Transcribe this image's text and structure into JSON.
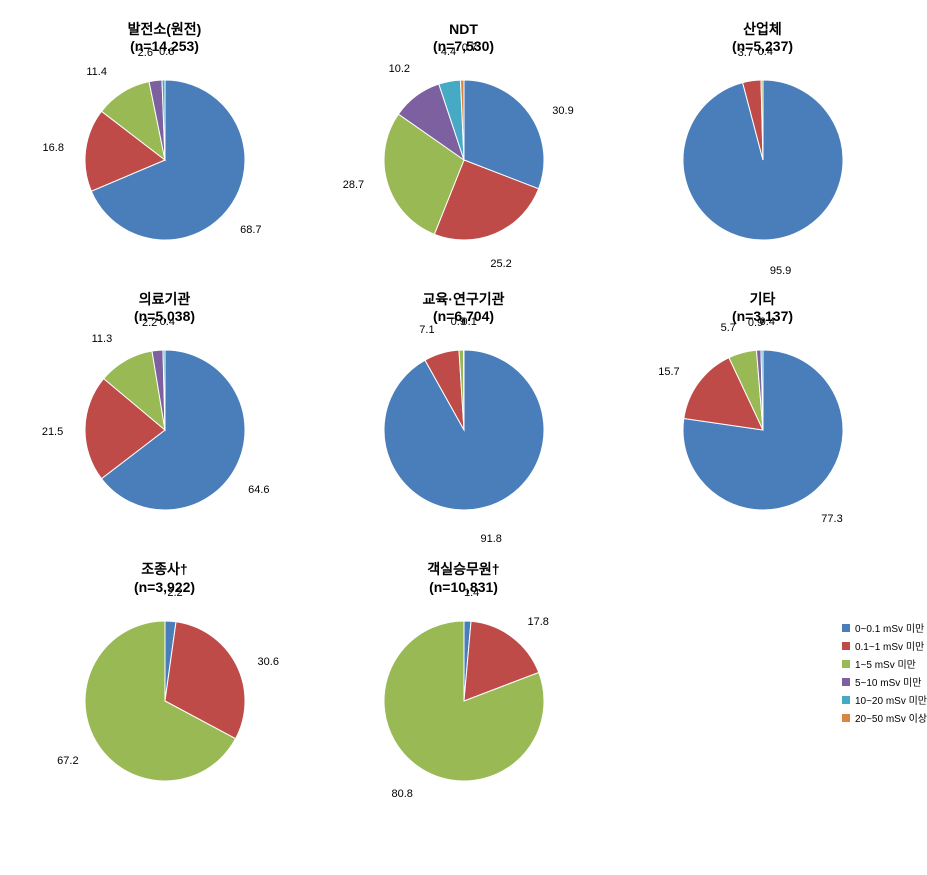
{
  "colors": {
    "c0": "#4a7ebb",
    "c1": "#be4b48",
    "c2": "#98b954",
    "c3": "#7d60a0",
    "c4": "#46aac5",
    "c5": "#db843d"
  },
  "legend": [
    {
      "label": "0~0.1 mSv 미만",
      "color": "#4a7ebb"
    },
    {
      "label": "0.1~1 mSv 미만",
      "color": "#be4b48"
    },
    {
      "label": "1~5 mSv 미만",
      "color": "#98b954"
    },
    {
      "label": "5~10 mSv 미만",
      "color": "#7d60a0"
    },
    {
      "label": "10~20 mSv 미만",
      "color": "#46aac5"
    },
    {
      "label": "20~50 mSv 이상",
      "color": "#db843d"
    }
  ],
  "pie_radius": 80,
  "label_fontsize": 11,
  "title_fontsize": 14,
  "charts": [
    {
      "title": "발전소(원전)",
      "n": "(n=14,253)",
      "slices": [
        {
          "value": 68.7,
          "label": "68.7",
          "color": "#4a7ebb",
          "offx": 8,
          "offy": 18
        },
        {
          "value": 16.8,
          "label": "16.8",
          "color": "#be4b48",
          "offx": -18,
          "offy": 0
        },
        {
          "value": 11.4,
          "label": "11.4",
          "color": "#98b954",
          "offx": -18,
          "offy": -8
        },
        {
          "value": 2.6,
          "label": "2.6",
          "color": "#7d60a0",
          "offx": -8,
          "offy": -14
        },
        {
          "value": 0.6,
          "label": "0.6",
          "color": "#46aac5",
          "offx": 4,
          "offy": -14
        }
      ]
    },
    {
      "title": "NDT",
      "n": "(n=7,530)",
      "slices": [
        {
          "value": 30.9,
          "label": "30.9",
          "color": "#4a7ebb",
          "offx": 22,
          "offy": 4
        },
        {
          "value": 25.2,
          "label": "25.2",
          "color": "#be4b48",
          "offx": 0,
          "offy": 18
        },
        {
          "value": 28.7,
          "label": "28.7",
          "color": "#98b954",
          "offx": -20,
          "offy": -2
        },
        {
          "value": 10.2,
          "label": "10.2",
          "color": "#7d60a0",
          "offx": -8,
          "offy": -16
        },
        {
          "value": 4.4,
          "label": "4.4",
          "color": "#46aac5",
          "offx": 2,
          "offy": -16
        },
        {
          "value": 0.7,
          "label": "0.7",
          "color": "#db843d",
          "offx": 8,
          "offy": -18
        }
      ]
    },
    {
      "title": "산업체",
      "n": "(n=5,237)",
      "slices": [
        {
          "value": 95.9,
          "label": "95.9",
          "color": "#4a7ebb",
          "offx": 6,
          "offy": 18
        },
        {
          "value": 3.7,
          "label": "3.7",
          "color": "#be4b48",
          "offx": -4,
          "offy": -14
        },
        {
          "value": 0.4,
          "label": "0.4",
          "color": "#98b954",
          "offx": 4,
          "offy": -14
        }
      ]
    },
    {
      "title": "의료기관",
      "n": "(n=5,038)",
      "slices": [
        {
          "value": 64.6,
          "label": "64.6",
          "color": "#4a7ebb",
          "offx": 10,
          "offy": 18
        },
        {
          "value": 21.5,
          "label": "21.5",
          "color": "#be4b48",
          "offx": -18,
          "offy": 4
        },
        {
          "value": 11.3,
          "label": "11.3",
          "color": "#98b954",
          "offx": -16,
          "offy": -10
        },
        {
          "value": 2.2,
          "label": "2.2",
          "color": "#7d60a0",
          "offx": -6,
          "offy": -14
        },
        {
          "value": 0.4,
          "label": "0.4",
          "color": "#46aac5",
          "offx": 4,
          "offy": -14
        }
      ]
    },
    {
      "title": "교육·연구기관",
      "n": "(n=6,704)",
      "slices": [
        {
          "value": 91.8,
          "label": "91.8",
          "color": "#4a7ebb",
          "offx": 4,
          "offy": 18
        },
        {
          "value": 7.1,
          "label": "7.1",
          "color": "#be4b48",
          "offx": -10,
          "offy": -10
        },
        {
          "value": 0.9,
          "label": "0.9",
          "color": "#98b954",
          "offx": -2,
          "offy": -14
        },
        {
          "value": 0.1,
          "label": "0.1",
          "color": "#7d60a0",
          "offx": 6,
          "offy": -14
        }
      ]
    },
    {
      "title": "기타",
      "n": "(n=3,137)",
      "slices": [
        {
          "value": 77.3,
          "label": "77.3",
          "color": "#4a7ebb",
          "offx": 8,
          "offy": 18
        },
        {
          "value": 15.7,
          "label": "15.7",
          "color": "#be4b48",
          "offx": -18,
          "offy": -2
        },
        {
          "value": 5.7,
          "label": "5.7",
          "color": "#98b954",
          "offx": -10,
          "offy": -12
        },
        {
          "value": 0.9,
          "label": "0.9",
          "color": "#7d60a0",
          "offx": -2,
          "offy": -14
        },
        {
          "value": 0.4,
          "label": "0.4",
          "color": "#46aac5",
          "offx": 6,
          "offy": -14
        }
      ]
    },
    {
      "title": "조종사†",
      "n": "(n=3,922)",
      "slices": [
        {
          "value": 2.2,
          "label": "2.2",
          "color": "#4a7ebb",
          "offx": 4,
          "offy": -14
        },
        {
          "value": 30.6,
          "label": "30.6",
          "color": "#be4b48",
          "offx": 20,
          "offy": 4
        },
        {
          "value": 67.2,
          "label": "67.2",
          "color": "#98b954",
          "offx": -16,
          "offy": 12
        }
      ]
    },
    {
      "title": "객실승무원†",
      "n": "(n=10,831)",
      "slices": [
        {
          "value": 1.4,
          "label": "1.4",
          "color": "#4a7ebb",
          "offx": 4,
          "offy": -14
        },
        {
          "value": 17.8,
          "label": "17.8",
          "color": "#be4b48",
          "offx": 18,
          "offy": -4
        },
        {
          "value": 80.8,
          "label": "80.8",
          "color": "#98b954",
          "offx": -8,
          "offy": 16
        }
      ]
    }
  ]
}
